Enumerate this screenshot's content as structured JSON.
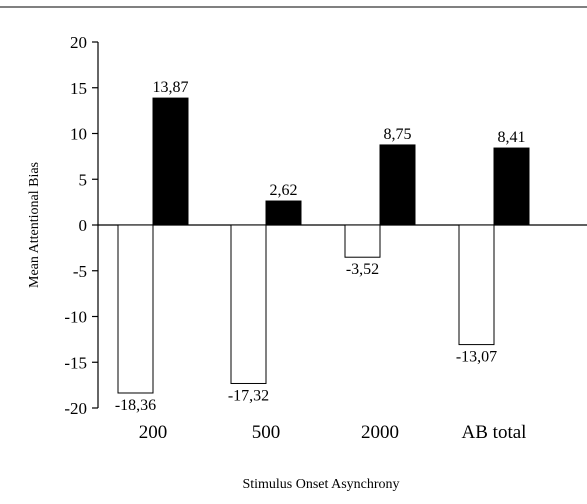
{
  "chart_data": {
    "type": "bar",
    "title": "",
    "xlabel": "Stimulus Onset Asynchrony",
    "ylabel": "Mean Attentional Bias",
    "ylim": [
      -20,
      20
    ],
    "yticks": [
      "20",
      "15",
      "10",
      "5",
      "0",
      "-5",
      "-10",
      "-15",
      "-20"
    ],
    "categories": [
      "200",
      "500",
      "2000",
      "AB total"
    ],
    "series": [
      {
        "color": "#ffffff",
        "values": [
          -18.36,
          -17.32,
          -3.52,
          -13.07
        ],
        "labels": [
          "-18,36",
          "-17,32",
          "-3,52",
          "-13,07"
        ]
      },
      {
        "color": "#000000",
        "values": [
          13.87,
          2.62,
          8.75,
          8.41
        ],
        "labels": [
          "13,87",
          "2,62",
          "8,75",
          "8,41"
        ]
      }
    ],
    "grid": false,
    "legend": "none"
  }
}
